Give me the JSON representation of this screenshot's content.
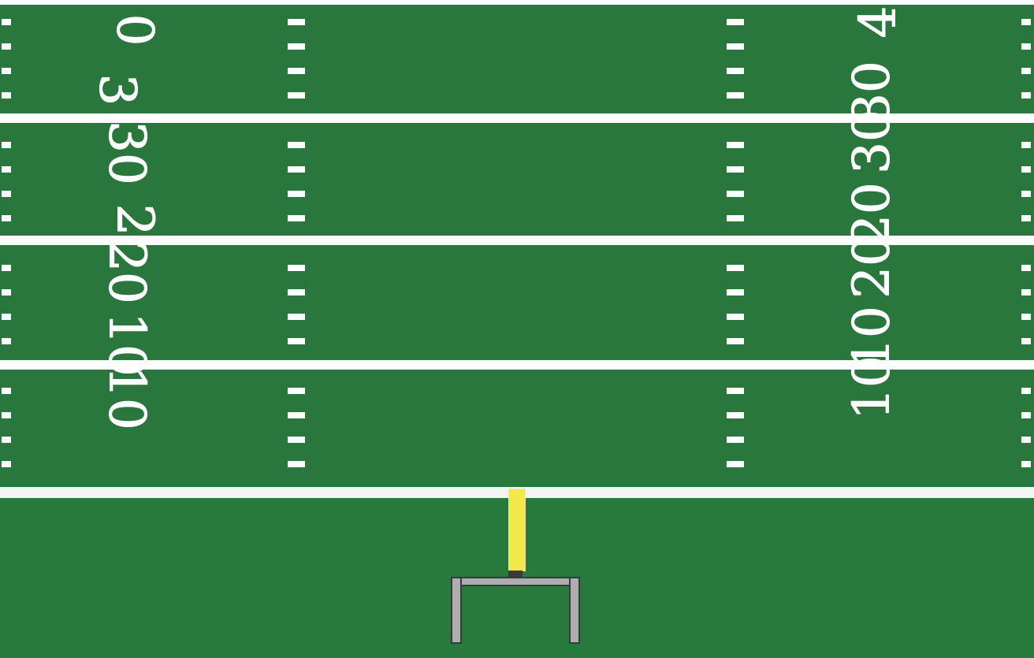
{
  "field": {
    "colors": {
      "grass": "#29773c",
      "lines": "#ffffff",
      "goalpost_upright": "#f2e84a",
      "goal_frame": "#aeaeb2"
    },
    "left_numbers": [
      "0",
      "3",
      "30",
      "2",
      "20",
      "10",
      "10"
    ],
    "right_numbers": [
      "4",
      "30",
      "30",
      "20",
      "20",
      "10",
      "10"
    ]
  }
}
